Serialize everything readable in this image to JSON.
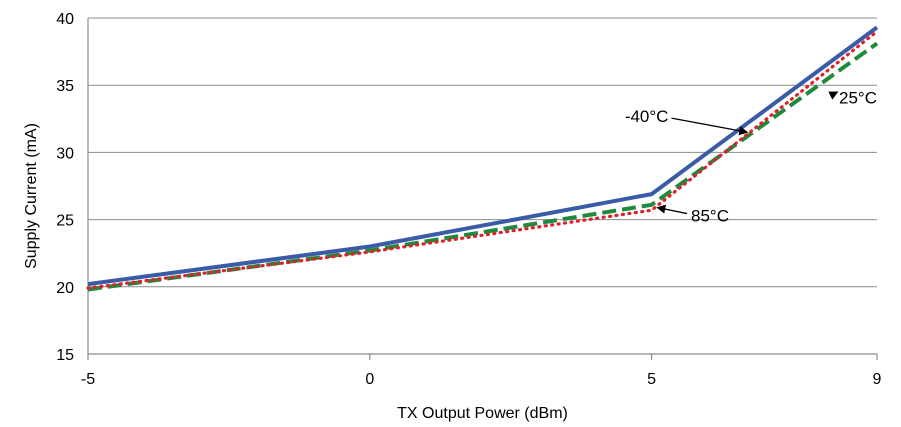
{
  "chart_data": {
    "type": "line",
    "title": "",
    "xlabel": "TX Output Power (dBm)",
    "ylabel": "Supply Current (mA)",
    "xlim": [
      -5,
      9
    ],
    "ylim": [
      15,
      40
    ],
    "x_ticks": [
      "-5",
      "0",
      "5",
      "9"
    ],
    "y_ticks": [
      "15",
      "20",
      "25",
      "30",
      "35",
      "40"
    ],
    "grid": "horizontal",
    "legend": "none",
    "series": [
      {
        "name": "-40°C",
        "color": "#3a5ba6",
        "style": "solid",
        "x": [
          -5,
          0,
          5,
          9
        ],
        "y": [
          20.2,
          23.0,
          26.9,
          39.3
        ]
      },
      {
        "name": "25°C",
        "color": "#1e8a3c",
        "style": "dashed",
        "x": [
          -5,
          0,
          5,
          9
        ],
        "y": [
          19.8,
          22.7,
          26.1,
          38.1
        ]
      },
      {
        "name": "85°C",
        "color": "#e0202a",
        "style": "dotted",
        "x": [
          -5,
          0,
          5,
          9
        ],
        "y": [
          19.9,
          22.6,
          25.7,
          39.0
        ]
      }
    ],
    "annotations": [
      {
        "text": "-40°C",
        "series": "-40°C",
        "target": [
          6.7,
          31.5
        ],
        "label_pos": [
          5.3,
          32.7
        ]
      },
      {
        "text": "25°C",
        "series": "25°C",
        "target": [
          8.3,
          34.5
        ],
        "label_pos": [
          9.0,
          34.1
        ]
      },
      {
        "text": "85°C",
        "series": "85°C",
        "target": [
          5.1,
          25.9
        ],
        "label_pos": [
          5.7,
          25.3
        ]
      }
    ]
  }
}
